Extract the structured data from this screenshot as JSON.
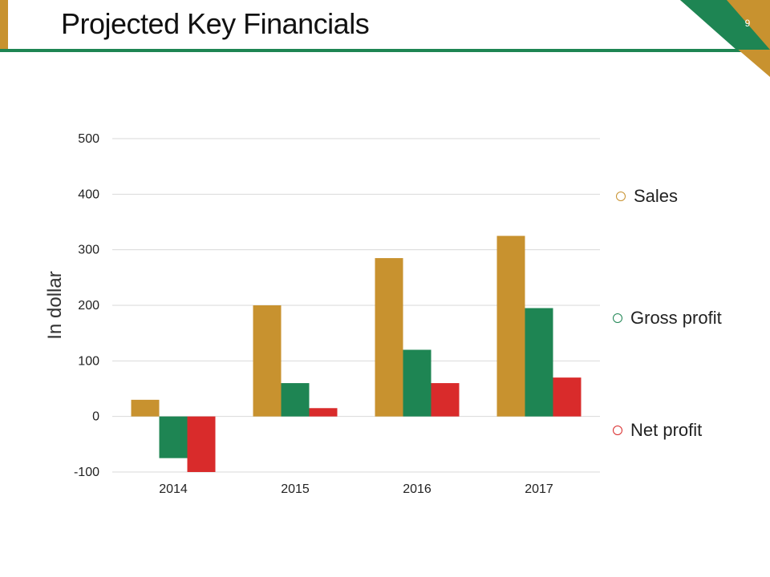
{
  "slide": {
    "title": "Projected Key Financials",
    "page_number": "9",
    "colors": {
      "gold": "#C8922F",
      "green": "#1E8553",
      "red": "#D92B2B"
    }
  },
  "chart_data": {
    "type": "bar",
    "categories": [
      "2014",
      "2015",
      "2016",
      "2017"
    ],
    "series": [
      {
        "name": "Sales",
        "color": "#C8922F",
        "values": [
          30,
          200,
          285,
          325
        ]
      },
      {
        "name": "Gross profit",
        "color": "#1E8553",
        "values": [
          -75,
          60,
          120,
          195
        ]
      },
      {
        "name": "Net profit",
        "color": "#D92B2B",
        "values": [
          -100,
          15,
          60,
          70
        ]
      }
    ],
    "ylabel": "In dollar",
    "xlabel": "",
    "ylim": [
      -100,
      500
    ],
    "yticks": [
      "-100",
      "0",
      "100",
      "200",
      "300",
      "400",
      "500"
    ],
    "grid": true,
    "legend_position": "right"
  }
}
